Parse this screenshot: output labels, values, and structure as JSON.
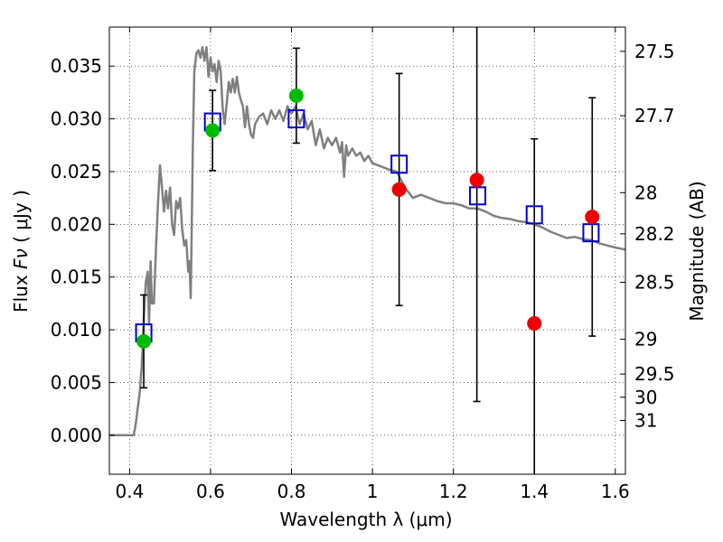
{
  "chart_data": {
    "type": "scatter",
    "xlabel": "Wavelength  λ (μm)",
    "ylabel_prefix": "Flux  ",
    "ylabel_math": "Fν",
    "ylabel_suffix": "  ( μJy )",
    "y2label": "Magnitude (AB)",
    "xlim": [
      0.35,
      1.625
    ],
    "ylim": [
      -0.0037,
      0.0387
    ],
    "grid": true,
    "x_ticks": [
      {
        "value": 0.4,
        "label": "0.4"
      },
      {
        "value": 0.6,
        "label": "0.6"
      },
      {
        "value": 0.8,
        "label": "0.8"
      },
      {
        "value": 1.0,
        "label": "1"
      },
      {
        "value": 1.2,
        "label": "1.2"
      },
      {
        "value": 1.4,
        "label": "1.4"
      },
      {
        "value": 1.6,
        "label": "1.6"
      }
    ],
    "y_ticks": [
      {
        "value": 0.0,
        "label": "0.000"
      },
      {
        "value": 0.005,
        "label": "0.005"
      },
      {
        "value": 0.01,
        "label": "0.010"
      },
      {
        "value": 0.015,
        "label": "0.015"
      },
      {
        "value": 0.02,
        "label": "0.020"
      },
      {
        "value": 0.025,
        "label": "0.025"
      },
      {
        "value": 0.03,
        "label": "0.030"
      },
      {
        "value": 0.035,
        "label": "0.035"
      }
    ],
    "magnitude_ticks": [
      {
        "label": "27.5",
        "flux": 0.0364
      },
      {
        "label": "27.7",
        "flux": 0.0303
      },
      {
        "label": "28",
        "flux": 0.023
      },
      {
        "label": "28.2",
        "flux": 0.0191
      },
      {
        "label": "28.5",
        "flux": 0.0145
      },
      {
        "label": "29",
        "flux": 0.0091
      },
      {
        "label": "29.5",
        "flux": 0.0058
      },
      {
        "label": "30",
        "flux": 0.0036
      },
      {
        "label": "31",
        "flux": 0.0014
      }
    ],
    "model_spectrum": {
      "color": "#808080",
      "points": [
        [
          0.35,
          0.0
        ],
        [
          0.41,
          0.0
        ],
        [
          0.415,
          0.001
        ],
        [
          0.42,
          0.0025
        ],
        [
          0.425,
          0.004
        ],
        [
          0.43,
          0.0065
        ],
        [
          0.435,
          0.011
        ],
        [
          0.44,
          0.0145
        ],
        [
          0.445,
          0.0155
        ],
        [
          0.448,
          0.0105
        ],
        [
          0.452,
          0.0165
        ],
        [
          0.455,
          0.0125
        ],
        [
          0.46,
          0.0125
        ],
        [
          0.465,
          0.0175
        ],
        [
          0.47,
          0.0218
        ],
        [
          0.475,
          0.0256
        ],
        [
          0.48,
          0.0235
        ],
        [
          0.485,
          0.0212
        ],
        [
          0.49,
          0.0232
        ],
        [
          0.495,
          0.0215
        ],
        [
          0.5,
          0.0235
        ],
        [
          0.505,
          0.02
        ],
        [
          0.51,
          0.019
        ],
        [
          0.515,
          0.0222
        ],
        [
          0.52,
          0.0215
        ],
        [
          0.525,
          0.0225
        ],
        [
          0.53,
          0.0195
        ],
        [
          0.535,
          0.018
        ],
        [
          0.54,
          0.0185
        ],
        [
          0.545,
          0.0155
        ],
        [
          0.548,
          0.0165
        ],
        [
          0.551,
          0.013
        ],
        [
          0.553,
          0.018
        ],
        [
          0.556,
          0.027
        ],
        [
          0.56,
          0.0345
        ],
        [
          0.565,
          0.0362
        ],
        [
          0.57,
          0.0365
        ],
        [
          0.575,
          0.0358
        ],
        [
          0.58,
          0.0368
        ],
        [
          0.585,
          0.0355
        ],
        [
          0.59,
          0.0368
        ],
        [
          0.595,
          0.034
        ],
        [
          0.6,
          0.0358
        ],
        [
          0.605,
          0.0345
        ],
        [
          0.61,
          0.0352
        ],
        [
          0.615,
          0.0335
        ],
        [
          0.62,
          0.0355
        ],
        [
          0.625,
          0.0345
        ],
        [
          0.63,
          0.031
        ],
        [
          0.635,
          0.0295
        ],
        [
          0.64,
          0.0315
        ],
        [
          0.645,
          0.0335
        ],
        [
          0.65,
          0.0325
        ],
        [
          0.655,
          0.0338
        ],
        [
          0.66,
          0.0325
        ],
        [
          0.665,
          0.034
        ],
        [
          0.67,
          0.0325
        ],
        [
          0.675,
          0.0318
        ],
        [
          0.68,
          0.0312
        ],
        [
          0.685,
          0.0292
        ],
        [
          0.69,
          0.0312
        ],
        [
          0.695,
          0.0295
        ],
        [
          0.7,
          0.0285
        ],
        [
          0.705,
          0.0282
        ],
        [
          0.71,
          0.0295
        ],
        [
          0.72,
          0.0302
        ],
        [
          0.73,
          0.0305
        ],
        [
          0.74,
          0.0295
        ],
        [
          0.75,
          0.0308
        ],
        [
          0.76,
          0.03
        ],
        [
          0.77,
          0.0308
        ],
        [
          0.78,
          0.0298
        ],
        [
          0.79,
          0.0312
        ],
        [
          0.8,
          0.0305
        ],
        [
          0.81,
          0.0312
        ],
        [
          0.82,
          0.0295
        ],
        [
          0.83,
          0.0305
        ],
        [
          0.84,
          0.029
        ],
        [
          0.85,
          0.0298
        ],
        [
          0.86,
          0.0275
        ],
        [
          0.87,
          0.029
        ],
        [
          0.88,
          0.0272
        ],
        [
          0.89,
          0.0282
        ],
        [
          0.9,
          0.0275
        ],
        [
          0.91,
          0.0282
        ],
        [
          0.92,
          0.0268
        ],
        [
          0.925,
          0.0278
        ],
        [
          0.93,
          0.0245
        ],
        [
          0.935,
          0.0275
        ],
        [
          0.94,
          0.0265
        ],
        [
          0.95,
          0.0272
        ],
        [
          0.96,
          0.0265
        ],
        [
          0.97,
          0.0268
        ],
        [
          0.98,
          0.026
        ],
        [
          0.99,
          0.0265
        ],
        [
          1.0,
          0.0258
        ],
        [
          1.02,
          0.0255
        ],
        [
          1.04,
          0.0252
        ],
        [
          1.06,
          0.025
        ],
        [
          1.08,
          0.0235
        ],
        [
          1.1,
          0.0225
        ],
        [
          1.12,
          0.0228
        ],
        [
          1.14,
          0.0225
        ],
        [
          1.16,
          0.0222
        ],
        [
          1.18,
          0.022
        ],
        [
          1.2,
          0.022
        ],
        [
          1.22,
          0.0218
        ],
        [
          1.24,
          0.0215
        ],
        [
          1.26,
          0.0215
        ],
        [
          1.28,
          0.0212
        ],
        [
          1.3,
          0.0208
        ],
        [
          1.32,
          0.0206
        ],
        [
          1.34,
          0.0205
        ],
        [
          1.36,
          0.0203
        ],
        [
          1.38,
          0.0202
        ],
        [
          1.4,
          0.02
        ],
        [
          1.42,
          0.0197
        ],
        [
          1.44,
          0.0193
        ],
        [
          1.46,
          0.019
        ],
        [
          1.48,
          0.0187
        ],
        [
          1.5,
          0.0188
        ],
        [
          1.52,
          0.0186
        ],
        [
          1.54,
          0.0185
        ],
        [
          1.56,
          0.0182
        ],
        [
          1.58,
          0.018
        ],
        [
          1.6,
          0.0178
        ],
        [
          1.625,
          0.0176
        ]
      ]
    },
    "model_points": {
      "color": "#0000cc",
      "points": [
        [
          0.435,
          0.0097
        ],
        [
          0.605,
          0.0297
        ],
        [
          0.812,
          0.03
        ],
        [
          1.066,
          0.0257
        ],
        [
          1.26,
          0.0227
        ],
        [
          1.4,
          0.0209
        ],
        [
          1.54,
          0.0192
        ]
      ]
    },
    "observed_green": {
      "color": "#00bb00",
      "points": [
        {
          "x": 0.435,
          "y": 0.0089,
          "err": 0.0044
        },
        {
          "x": 0.605,
          "y": 0.0289,
          "err": 0.0038
        },
        {
          "x": 0.812,
          "y": 0.0322,
          "err": 0.0045
        }
      ]
    },
    "observed_red": {
      "color": "#ee0000",
      "points": [
        {
          "x": 1.066,
          "y": 0.0233,
          "err": 0.011
        },
        {
          "x": 1.258,
          "y": 0.0242,
          "err": 0.021
        },
        {
          "x": 1.4,
          "y": 0.0106,
          "err": 0.0175
        },
        {
          "x": 1.543,
          "y": 0.0207,
          "err": 0.0113
        }
      ]
    }
  }
}
